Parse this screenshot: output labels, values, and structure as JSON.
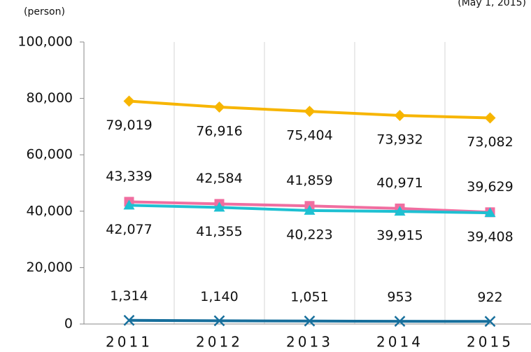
{
  "chart_data": {
    "type": "line",
    "ylabel": "(person)",
    "note": "(May 1, 2015)",
    "categories": [
      "2011",
      "2012",
      "2013",
      "2014",
      "2015"
    ],
    "series": [
      {
        "color": "#f7b500",
        "marker": "diamond",
        "values": [
          79019,
          76916,
          75404,
          73932,
          73082
        ],
        "value_labels": [
          "79,019",
          "76,916",
          "75,404",
          "73,932",
          "73,082"
        ]
      },
      {
        "color": "#f06ea0",
        "marker": "square",
        "values": [
          43339,
          42584,
          41859,
          40971,
          39629
        ],
        "value_labels": [
          "43,339",
          "42,584",
          "41,859",
          "40,971",
          "39,629"
        ]
      },
      {
        "color": "#1ec0d2",
        "marker": "triangle",
        "values": [
          42077,
          41355,
          40223,
          39915,
          39408
        ],
        "value_labels": [
          "42,077",
          "41,355",
          "40,223",
          "39,915",
          "39,408"
        ]
      },
      {
        "color": "#176f9c",
        "marker": "x",
        "values": [
          1314,
          1140,
          1051,
          953,
          922
        ],
        "value_labels": [
          "1,314",
          "1,140",
          "1,051",
          "953",
          "922"
        ]
      }
    ],
    "ylim": [
      0,
      100000
    ],
    "yticks": [
      0,
      {
        "value": 20000,
        "label": "20,000"
      },
      {
        "value": 40000,
        "label": "40,000"
      },
      {
        "value": 60000,
        "label": "60,000"
      },
      {
        "value": 80000,
        "label": "80,000"
      },
      {
        "value": 100000,
        "label": "100,000"
      }
    ],
    "grid": "x"
  }
}
